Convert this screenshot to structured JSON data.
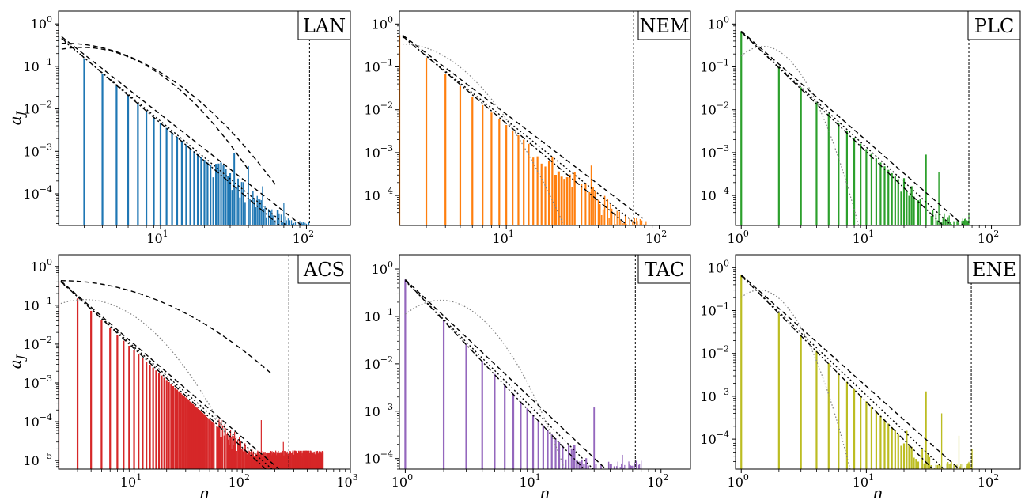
{
  "chart_data": [
    {
      "type": "bar",
      "panel_label": "LAN",
      "color": "#1f77b4",
      "xscale": "log",
      "yscale": "log",
      "xlim": [
        2,
        200
      ],
      "ylim": [
        1.8e-05,
        2
      ],
      "xticks": [
        {
          "v": 10,
          "b": "10",
          "e": "1"
        },
        {
          "v": 100,
          "b": "10",
          "e": "2"
        }
      ],
      "yticks": [
        {
          "v": 1,
          "b": "10",
          "e": "0"
        },
        {
          "v": 0.1,
          "b": "10",
          "e": "−1"
        },
        {
          "v": 0.01,
          "b": "10",
          "e": "−2"
        },
        {
          "v": 0.001,
          "b": "10",
          "e": "−3"
        },
        {
          "v": 0.0001,
          "b": "10",
          "e": "−4"
        }
      ],
      "ylabel": "a_J",
      "xlabel": "",
      "cutoff_x": 105,
      "bars": {
        "n_min": 2,
        "n_max": 104,
        "a0": 0.5,
        "alpha": 2.9,
        "min": 1.6e-05,
        "noise_start": 22,
        "sparse_until": 30,
        "peaks": [
          [
            32,
            0.0009
          ],
          [
            40,
            0.00045
          ],
          [
            50,
            0.00015
          ],
          [
            70,
            6e-05
          ],
          [
            101,
            2.8e-05
          ]
        ]
      },
      "fits": [
        {
          "style": "dashed",
          "kind": "power",
          "x0": 2.1,
          "x1": 100,
          "y0": 0.5,
          "alpha": 2.7
        },
        {
          "style": "dashdot",
          "kind": "power",
          "x0": 2.1,
          "x1": 75,
          "y0": 0.46,
          "alpha": 2.95
        },
        {
          "style": "dotted",
          "kind": "power",
          "x0": 2.1,
          "x1": 95,
          "y0": 0.44,
          "alpha": 2.85
        },
        {
          "style": "dashed",
          "kind": "lognormal",
          "x0": 2.1,
          "x1": 62,
          "peak_x": 2.2,
          "peak_y": 0.35,
          "sigma": 0.85
        },
        {
          "style": "dashed",
          "kind": "lognormal",
          "x0": 2.1,
          "x1": 40,
          "peak_x": 2.9,
          "peak_y": 0.28,
          "sigma": 0.72
        }
      ]
    },
    {
      "type": "bar",
      "panel_label": "NEM",
      "color": "#ff7f0e",
      "xscale": "log",
      "yscale": "log",
      "xlim": [
        2,
        160
      ],
      "ylim": [
        2e-05,
        2
      ],
      "xticks": [
        {
          "v": 10,
          "b": "10",
          "e": "1"
        },
        {
          "v": 100,
          "b": "10",
          "e": "2"
        }
      ],
      "yticks": [
        {
          "v": 1,
          "b": "10",
          "e": "0"
        },
        {
          "v": 0.1,
          "b": "10",
          "e": "−1"
        },
        {
          "v": 0.01,
          "b": "10",
          "e": "−2"
        },
        {
          "v": 0.001,
          "b": "10",
          "e": "−3"
        },
        {
          "v": 0.0001,
          "b": "10",
          "e": "−4"
        }
      ],
      "ylabel": "",
      "xlabel": "",
      "cutoff_x": 68,
      "bars": {
        "n_min": 2,
        "n_max": 82,
        "a0": 0.55,
        "alpha": 3.0,
        "min": 2e-05,
        "noise_start": 14,
        "sparse_until": 20,
        "peaks": [
          [
            30,
            0.0009
          ],
          [
            36,
            0.0005
          ],
          [
            50,
            8e-05
          ],
          [
            80,
            3.5e-05
          ]
        ]
      },
      "fits": [
        {
          "style": "dashed",
          "kind": "power",
          "x0": 2.1,
          "x1": 78,
          "y0": 0.55,
          "alpha": 2.72
        },
        {
          "style": "dashdot",
          "kind": "power",
          "x0": 2.1,
          "x1": 60,
          "y0": 0.52,
          "alpha": 3.0
        },
        {
          "style": "dotted",
          "kind": "power",
          "x0": 2.1,
          "x1": 75,
          "y0": 0.5,
          "alpha": 2.86
        },
        {
          "style": "dotgrey",
          "kind": "lognormal",
          "x0": 2.1,
          "x1": 40,
          "peak_x": 2.1,
          "peak_y": 0.34,
          "sigma": 0.55
        }
      ]
    },
    {
      "type": "bar",
      "panel_label": "PLC",
      "color": "#2ca02c",
      "xscale": "log",
      "yscale": "log",
      "xlim": [
        0.9,
        170
      ],
      "ylim": [
        2e-05,
        2
      ],
      "xticks": [
        {
          "v": 1,
          "b": "10",
          "e": "0"
        },
        {
          "v": 10,
          "b": "10",
          "e": "1"
        },
        {
          "v": 100,
          "b": "10",
          "e": "2"
        }
      ],
      "yticks": [
        {
          "v": 1,
          "b": "10",
          "e": "0"
        },
        {
          "v": 0.1,
          "b": "10",
          "e": "−1"
        },
        {
          "v": 0.01,
          "b": "10",
          "e": "−2"
        },
        {
          "v": 0.001,
          "b": "10",
          "e": "−3"
        },
        {
          "v": 0.0001,
          "b": "10",
          "e": "−4"
        }
      ],
      "ylabel": "",
      "xlabel": "",
      "cutoff_x": 66,
      "bars": {
        "n_min": 1,
        "n_max": 66,
        "a0": 0.68,
        "alpha": 2.75,
        "min": 2e-05,
        "noise_start": 18,
        "sparse_until": 22,
        "peaks": [
          [
            25,
            0.0015
          ],
          [
            30,
            0.0009
          ],
          [
            38,
            0.00035
          ],
          [
            66,
            4e-05
          ]
        ]
      },
      "fits": [
        {
          "style": "dashed",
          "kind": "power",
          "x0": 1,
          "x1": 66,
          "y0": 0.68,
          "alpha": 2.55
        },
        {
          "style": "dashdot",
          "kind": "power",
          "x0": 1,
          "x1": 50,
          "y0": 0.66,
          "alpha": 2.8
        },
        {
          "style": "dotted",
          "kind": "power",
          "x0": 1,
          "x1": 62,
          "y0": 0.64,
          "alpha": 2.68
        },
        {
          "style": "dotgrey",
          "kind": "lognormal",
          "x0": 1,
          "x1": 20,
          "peak_x": 1.5,
          "peak_y": 0.3,
          "sigma": 0.4
        }
      ]
    },
    {
      "type": "bar",
      "panel_label": "ACS",
      "color": "#d62728",
      "xscale": "log",
      "yscale": "log",
      "xlim": [
        2,
        1000
      ],
      "ylim": [
        6e-06,
        2
      ],
      "xticks": [
        {
          "v": 10,
          "b": "10",
          "e": "1"
        },
        {
          "v": 100,
          "b": "10",
          "e": "2"
        },
        {
          "v": 1000,
          "b": "10",
          "e": "3"
        }
      ],
      "yticks": [
        {
          "v": 1,
          "b": "10",
          "e": "0"
        },
        {
          "v": 0.1,
          "b": "10",
          "e": "−1"
        },
        {
          "v": 0.01,
          "b": "10",
          "e": "−2"
        },
        {
          "v": 0.001,
          "b": "10",
          "e": "−3"
        },
        {
          "v": 0.0001,
          "b": "10",
          "e": "−4"
        },
        {
          "v": 1e-05,
          "b": "10",
          "e": "−5"
        }
      ],
      "ylabel": "a_J",
      "xlabel": "n",
      "cutoff_x": 270,
      "bars": {
        "n_min": 2,
        "n_max": 560,
        "a0": 0.42,
        "alpha": 2.55,
        "min": 1.2e-05,
        "noise_start": 60,
        "sparse_until": 45,
        "peaks": [
          [
            150,
            0.00011
          ],
          [
            240,
            3e-05
          ],
          [
            300,
            1.3e-05
          ]
        ]
      },
      "fits": [
        {
          "style": "dashed",
          "kind": "power",
          "x0": 2.1,
          "x1": 250,
          "y0": 0.42,
          "alpha": 2.4
        },
        {
          "style": "dashdot",
          "kind": "power",
          "x0": 2.1,
          "x1": 200,
          "y0": 0.41,
          "alpha": 2.55
        },
        {
          "style": "dotted",
          "kind": "power",
          "x0": 2.1,
          "x1": 260,
          "y0": 0.4,
          "alpha": 2.47
        },
        {
          "style": "dashed",
          "kind": "lognormal",
          "x0": 2.1,
          "x1": 190,
          "peak_x": 2.1,
          "peak_y": 0.43,
          "sigma": 1.35
        },
        {
          "style": "dotgrey",
          "kind": "lognormal",
          "x0": 2.1,
          "x1": 70,
          "peak_x": 3.5,
          "peak_y": 0.14,
          "sigma": 0.75
        }
      ]
    },
    {
      "type": "bar",
      "panel_label": "TAC",
      "color": "#9467bd",
      "xscale": "log",
      "yscale": "log",
      "xlim": [
        0.9,
        170
      ],
      "ylim": [
        6e-05,
        2
      ],
      "xticks": [
        {
          "v": 1,
          "b": "10",
          "e": "0"
        },
        {
          "v": 10,
          "b": "10",
          "e": "1"
        },
        {
          "v": 100,
          "b": "10",
          "e": "2"
        }
      ],
      "yticks": [
        {
          "v": 1,
          "b": "10",
          "e": "0"
        },
        {
          "v": 0.1,
          "b": "10",
          "e": "−1"
        },
        {
          "v": 0.01,
          "b": "10",
          "e": "−2"
        },
        {
          "v": 0.001,
          "b": "10",
          "e": "−3"
        },
        {
          "v": 0.0001,
          "b": "10",
          "e": "−4"
        }
      ],
      "ylabel": "",
      "xlabel": "n",
      "cutoff_x": 63,
      "bars": {
        "n_min": 1,
        "n_max": 70,
        "a0": 0.6,
        "alpha": 2.85,
        "min": 6e-05,
        "noise_start": 17,
        "sparse_until": 20,
        "peaks": [
          [
            30,
            0.0012
          ],
          [
            36,
            0.0007
          ],
          [
            50,
            0.00012
          ],
          [
            70,
            9e-05
          ]
        ]
      },
      "fits": [
        {
          "style": "dashed",
          "kind": "power",
          "x0": 1,
          "x1": 66,
          "y0": 0.6,
          "alpha": 2.55
        },
        {
          "style": "dashdot",
          "kind": "power",
          "x0": 1,
          "x1": 48,
          "y0": 0.58,
          "alpha": 2.85
        },
        {
          "style": "dotted",
          "kind": "power",
          "x0": 1,
          "x1": 60,
          "y0": 0.56,
          "alpha": 2.7
        },
        {
          "style": "dotgrey",
          "kind": "lognormal",
          "x0": 1,
          "x1": 30,
          "peak_x": 1.9,
          "peak_y": 0.22,
          "sigma": 0.55
        }
      ]
    },
    {
      "type": "bar",
      "panel_label": "ENE",
      "color": "#bcbd22",
      "xscale": "log",
      "yscale": "log",
      "xlim": [
        0.9,
        170
      ],
      "ylim": [
        2e-05,
        2
      ],
      "xticks": [
        {
          "v": 1,
          "b": "10",
          "e": "0"
        },
        {
          "v": 10,
          "b": "10",
          "e": "1"
        },
        {
          "v": 100,
          "b": "10",
          "e": "2"
        }
      ],
      "yticks": [
        {
          "v": 1,
          "b": "10",
          "e": "0"
        },
        {
          "v": 0.1,
          "b": "10",
          "e": "−1"
        },
        {
          "v": 0.01,
          "b": "10",
          "e": "−2"
        },
        {
          "v": 0.001,
          "b": "10",
          "e": "−3"
        },
        {
          "v": 0.0001,
          "b": "10",
          "e": "−4"
        }
      ],
      "ylabel": "",
      "xlabel": "n",
      "cutoff_x": 69,
      "bars": {
        "n_min": 1,
        "n_max": 70,
        "a0": 0.68,
        "alpha": 2.95,
        "min": 2e-05,
        "noise_start": 18,
        "sparse_until": 22,
        "peaks": [
          [
            30,
            0.0013
          ],
          [
            40,
            0.0004
          ],
          [
            55,
            0.00012
          ],
          [
            70,
            6e-05
          ]
        ]
      },
      "fits": [
        {
          "style": "dashed",
          "kind": "power",
          "x0": 1,
          "x1": 68,
          "y0": 0.68,
          "alpha": 2.6
        },
        {
          "style": "dashdot",
          "kind": "power",
          "x0": 1,
          "x1": 50,
          "y0": 0.66,
          "alpha": 2.95
        },
        {
          "style": "dotted",
          "kind": "power",
          "x0": 1,
          "x1": 62,
          "y0": 0.64,
          "alpha": 2.78
        },
        {
          "style": "dotgrey",
          "kind": "lognormal",
          "x0": 1,
          "x1": 16,
          "peak_x": 1.4,
          "peak_y": 0.3,
          "sigma": 0.38
        }
      ]
    }
  ]
}
